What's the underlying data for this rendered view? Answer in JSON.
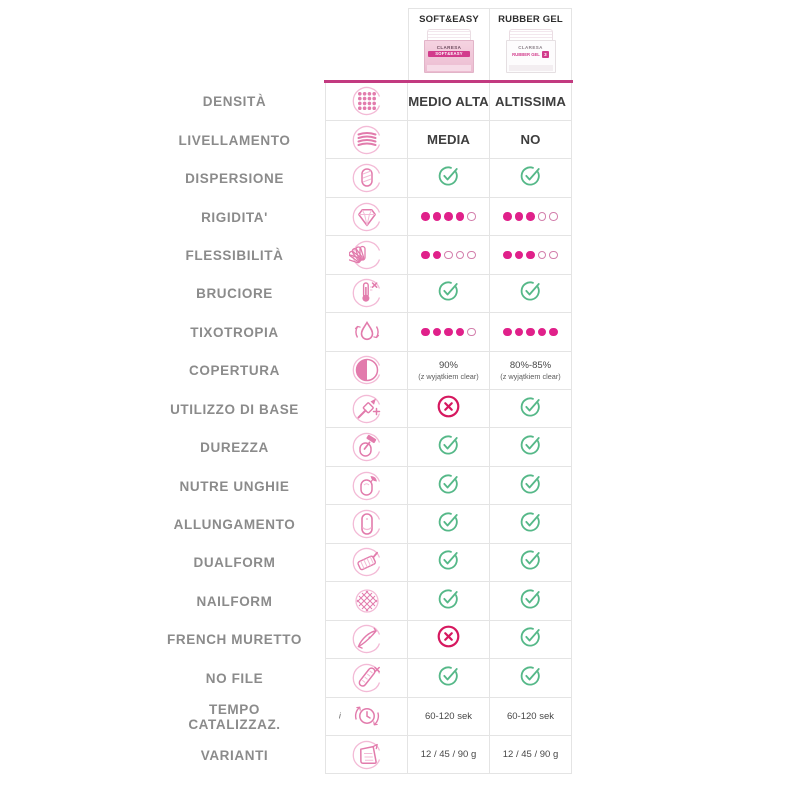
{
  "colors": {
    "accent_line": "#C23A80",
    "magenta_dot": "#E0218A",
    "dot_empty": "#D37FAC",
    "check_green": "#55B888",
    "cross_red": "#D6185F",
    "label_gray": "#8B8B8B",
    "value_dark": "#3E3E3E",
    "icon_pink": "#E27BAC",
    "icon_pink_light": "#F3BAD6",
    "border_gray": "#E4E4E4"
  },
  "header": {
    "products": [
      {
        "name": "SOFT&EASY",
        "jar_style": "pink",
        "jar_brand": "CLARESA",
        "jar_label": "SOFT&EASY"
      },
      {
        "name": "RUBBER GEL",
        "jar_style": "white",
        "jar_brand": "CLARESA",
        "jar_label": "RUBBER GEL",
        "jar_badge": "3"
      }
    ]
  },
  "rows": [
    {
      "label": "DENSITÀ",
      "icon": "density-icon",
      "cells": [
        {
          "type": "text",
          "text": "MEDIO ALTA",
          "size": "big"
        },
        {
          "type": "text",
          "text": "ALTISSIMA",
          "size": "big"
        }
      ]
    },
    {
      "label": "LIVELLAMENTO",
      "icon": "leveling-icon",
      "cells": [
        {
          "type": "text",
          "text": "MEDIA",
          "size": "big"
        },
        {
          "type": "text",
          "text": "NO",
          "size": "big"
        }
      ]
    },
    {
      "label": "DISPERSIONE",
      "icon": "dispersion-icon",
      "cells": [
        {
          "type": "check"
        },
        {
          "type": "check"
        }
      ]
    },
    {
      "label": "RIGIDITA'",
      "icon": "rigidity-icon",
      "cells": [
        {
          "type": "dots",
          "filled": 4,
          "total": 5
        },
        {
          "type": "dots",
          "filled": 3,
          "total": 5
        }
      ]
    },
    {
      "label": "FLESSIBILITÀ",
      "icon": "flexibility-icon",
      "cells": [
        {
          "type": "dots",
          "filled": 2,
          "total": 5
        },
        {
          "type": "dots",
          "filled": 3,
          "total": 5
        }
      ]
    },
    {
      "label": "BRUCIORE",
      "icon": "burn-icon",
      "cells": [
        {
          "type": "check"
        },
        {
          "type": "check"
        }
      ]
    },
    {
      "label": "TIXOTROPIA",
      "icon": "thixotropy-icon",
      "cells": [
        {
          "type": "dots",
          "filled": 4,
          "total": 5
        },
        {
          "type": "dots",
          "filled": 5,
          "total": 5
        }
      ]
    },
    {
      "label": "COPERTURA",
      "icon": "coverage-icon",
      "cells": [
        {
          "type": "text",
          "text": "90%",
          "sub": "(z wyjątkiem clear)",
          "size": "small"
        },
        {
          "type": "text",
          "text": "80%-85%",
          "sub": "(z wyjątkiem clear)",
          "size": "small"
        }
      ]
    },
    {
      "label": "UTILIZZO DI BASE",
      "icon": "base-use-icon",
      "cells": [
        {
          "type": "cross"
        },
        {
          "type": "check"
        }
      ]
    },
    {
      "label": "DUREZZA",
      "icon": "hardness-icon",
      "cells": [
        {
          "type": "check"
        },
        {
          "type": "check"
        }
      ]
    },
    {
      "label": "NUTRE UNGHIE",
      "icon": "nail-nourish-icon",
      "cells": [
        {
          "type": "check"
        },
        {
          "type": "check"
        }
      ]
    },
    {
      "label": "ALLUNGAMENTO",
      "icon": "extension-icon",
      "cells": [
        {
          "type": "check"
        },
        {
          "type": "check"
        }
      ]
    },
    {
      "label": "DUALFORM",
      "icon": "dualform-icon",
      "cells": [
        {
          "type": "check"
        },
        {
          "type": "check"
        }
      ]
    },
    {
      "label": "NAILFORM",
      "icon": "nailform-icon",
      "cells": [
        {
          "type": "check"
        },
        {
          "type": "check"
        }
      ]
    },
    {
      "label": "FRENCH MURETTO",
      "icon": "french-nipper-icon",
      "cells": [
        {
          "type": "cross"
        },
        {
          "type": "check"
        }
      ]
    },
    {
      "label": "NO FILE",
      "icon": "no-file-icon",
      "cells": [
        {
          "type": "check"
        },
        {
          "type": "check"
        }
      ]
    },
    {
      "label": "TEMPO\nCATALIZZAZ.",
      "icon": "cure-timer-icon",
      "icon_note": "i",
      "cells": [
        {
          "type": "text",
          "text": "60-120 sek",
          "size": "small"
        },
        {
          "type": "text",
          "text": "60-120 sek",
          "size": "small"
        }
      ]
    },
    {
      "label": "VARIANTI",
      "icon": "measuring-cup-icon",
      "cells": [
        {
          "type": "text",
          "text": "12 / 45 / 90 g",
          "size": "small"
        },
        {
          "type": "text",
          "text": "12 / 45 / 90 g",
          "size": "small"
        }
      ]
    }
  ]
}
